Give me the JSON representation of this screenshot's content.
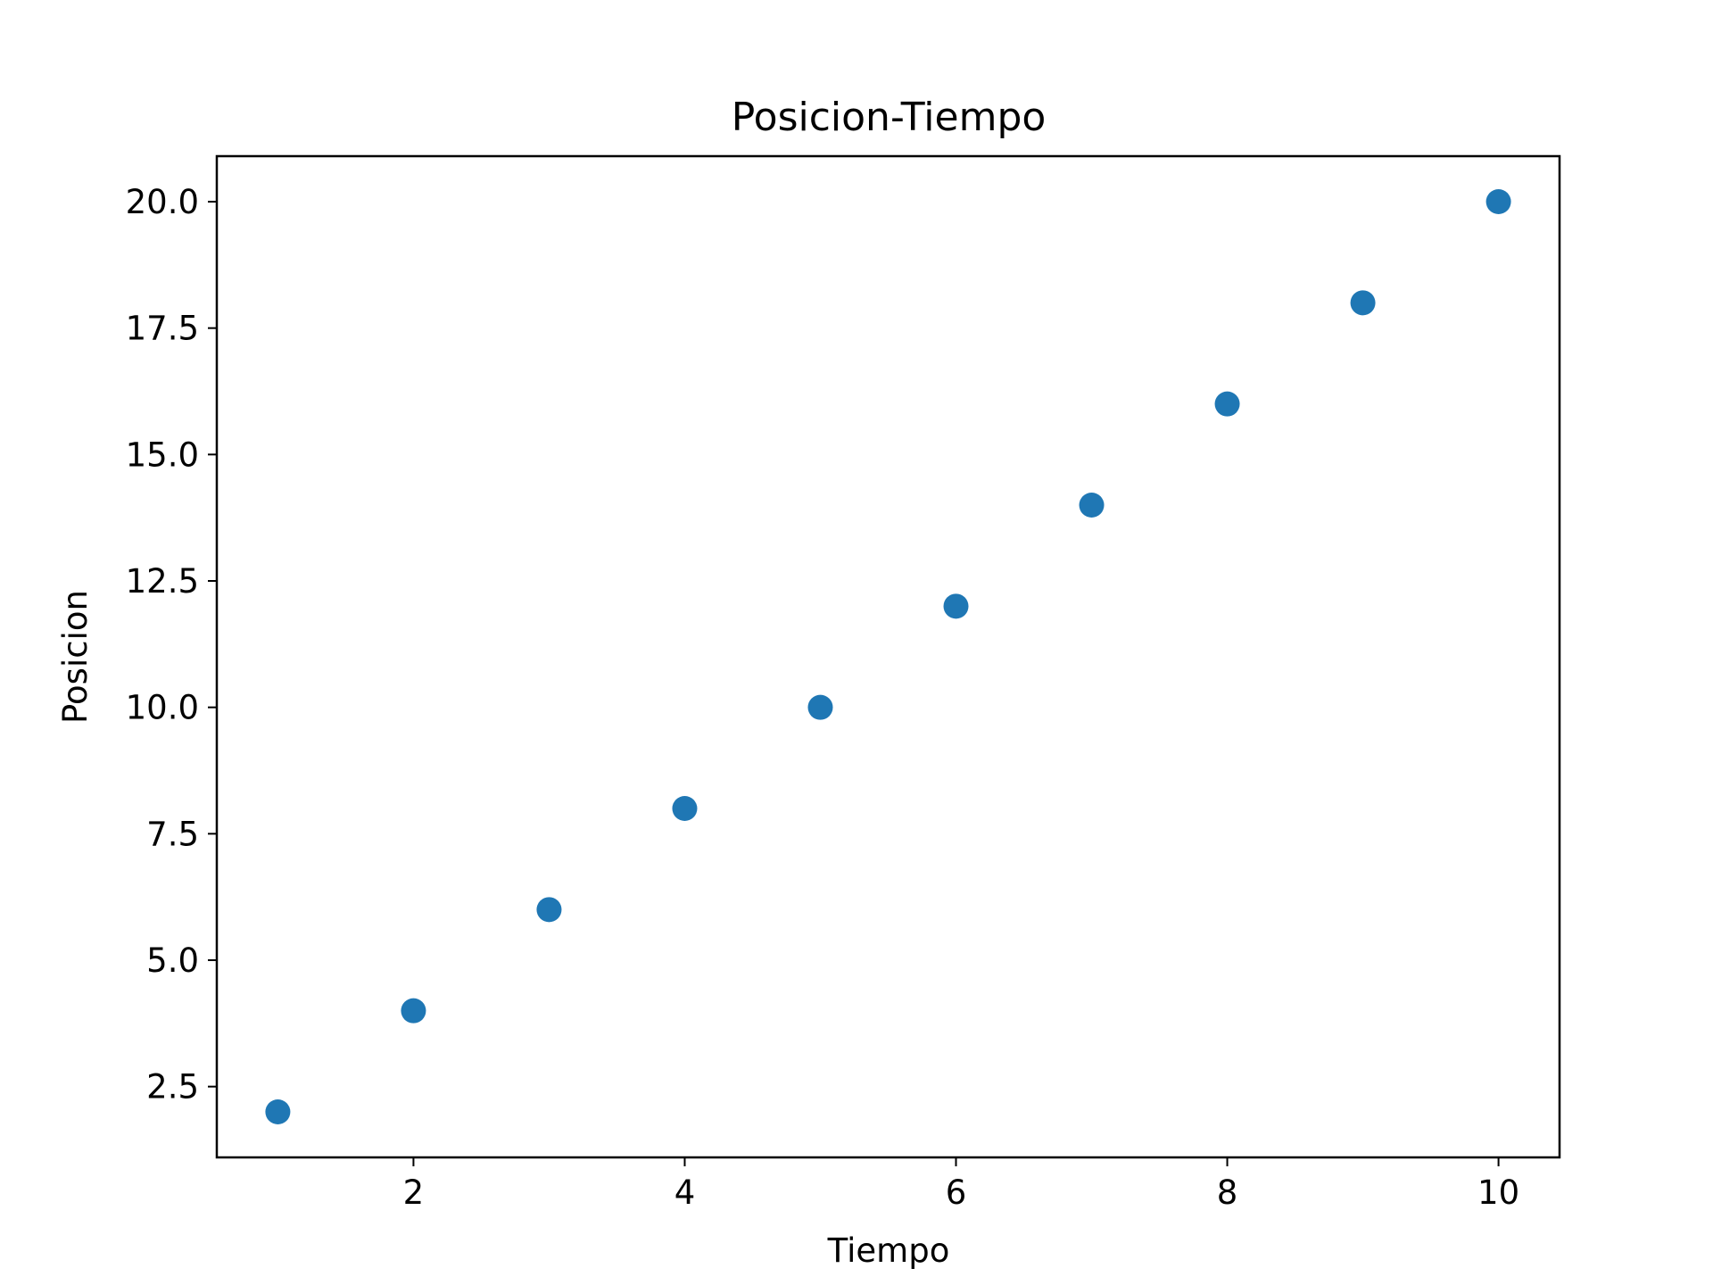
{
  "chart_data": {
    "type": "scatter",
    "title": "Posicion-Tiempo",
    "xlabel": "Tiempo",
    "ylabel": "Posicion",
    "x": [
      1,
      2,
      3,
      4,
      5,
      6,
      7,
      8,
      9,
      10
    ],
    "series": [
      {
        "values": [
          2,
          4,
          6,
          8,
          10,
          12,
          14,
          16,
          18,
          20
        ],
        "color": "#1f77b4"
      }
    ],
    "xlim": [
      0.55,
      10.45
    ],
    "ylim": [
      1.1,
      20.9
    ],
    "xticks": [
      2,
      4,
      6,
      8,
      10
    ],
    "xtick_labels": [
      "2",
      "4",
      "6",
      "8",
      "10"
    ],
    "yticks": [
      2.5,
      5.0,
      7.5,
      10.0,
      12.5,
      15.0,
      17.5,
      20.0
    ],
    "ytick_labels": [
      "2.5",
      "5.0",
      "7.5",
      "10.0",
      "12.5",
      "15.0",
      "17.5",
      "20.0"
    ],
    "grid": false,
    "legend": false
  }
}
